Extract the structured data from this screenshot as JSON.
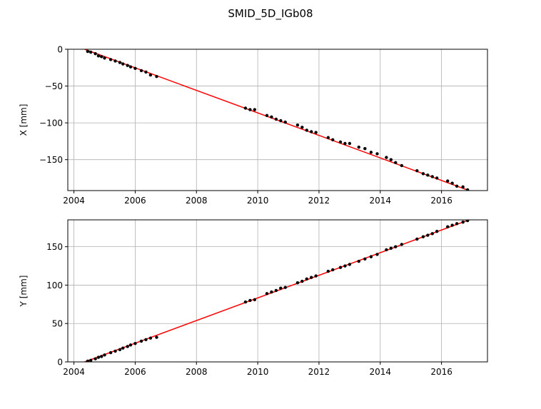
{
  "figure": {
    "title": "SMID_5D_IGb08"
  },
  "colors": {
    "fit_line": "#ff0000",
    "points": "#000000",
    "grid": "#b0b0b0",
    "axes": "#000000"
  },
  "chart_data": [
    {
      "type": "scatter",
      "title": "",
      "xlabel": "",
      "ylabel": "X [mm]",
      "xlim": [
        2003.8,
        2017.5
      ],
      "ylim": [
        -192,
        0
      ],
      "grid": true,
      "xticks": [
        2004,
        2006,
        2008,
        2010,
        2012,
        2014,
        2016
      ],
      "xtick_labels": [
        "2004",
        "2006",
        "2008",
        "2010",
        "2012",
        "2014",
        "2016"
      ],
      "yticks": [
        0,
        -50,
        -100,
        -150
      ],
      "ytick_labels": [
        "0",
        "−50",
        "−100",
        "−150"
      ],
      "trend": {
        "x": [
          2004.35,
          2016.9
        ],
        "y": [
          0,
          -192
        ]
      },
      "series": [
        {
          "x": [
            2004.45,
            2004.55,
            2004.7,
            2004.8,
            2004.9,
            2005.0,
            2005.2,
            2005.35,
            2005.5,
            2005.6,
            2005.75,
            2005.85,
            2006.0,
            2006.2,
            2006.35,
            2006.5,
            2006.7,
            2009.6,
            2009.75,
            2009.9,
            2010.3,
            2010.45,
            2010.6,
            2010.75,
            2010.9,
            2011.3,
            2011.45,
            2011.6,
            2011.75,
            2011.9,
            2012.3,
            2012.45,
            2012.7,
            2012.85,
            2013.0,
            2013.3,
            2013.5,
            2013.7,
            2013.9,
            2014.2,
            2014.35,
            2014.5,
            2014.7,
            2015.2,
            2015.4,
            2015.55,
            2015.7,
            2015.85,
            2016.2,
            2016.35,
            2016.5,
            2016.7,
            2016.85
          ],
          "y": [
            -3,
            -4,
            -6,
            -9,
            -10,
            -12,
            -14,
            -16,
            -18,
            -20,
            -22,
            -24,
            -26,
            -29,
            -31,
            -35,
            -37,
            -80,
            -82,
            -82,
            -90,
            -92,
            -95,
            -97,
            -99,
            -103,
            -106,
            -110,
            -112,
            -113,
            -120,
            -123,
            -126,
            -128,
            -128,
            -133,
            -135,
            -140,
            -142,
            -147,
            -150,
            -154,
            -158,
            -165,
            -169,
            -171,
            -173,
            -175,
            -179,
            -182,
            -186,
            -187,
            -191
          ]
        }
      ]
    },
    {
      "type": "scatter",
      "title": "",
      "xlabel": "",
      "ylabel": "Y [mm]",
      "xlim": [
        2003.8,
        2017.5
      ],
      "ylim": [
        0,
        185
      ],
      "grid": true,
      "xticks": [
        2004,
        2006,
        2008,
        2010,
        2012,
        2014,
        2016
      ],
      "xtick_labels": [
        "2004",
        "2006",
        "2008",
        "2010",
        "2012",
        "2014",
        "2016"
      ],
      "yticks": [
        0,
        50,
        100,
        150
      ],
      "ytick_labels": [
        "0",
        "50",
        "100",
        "150"
      ],
      "trend": {
        "x": [
          2004.35,
          2016.9
        ],
        "y": [
          0,
          185
        ]
      },
      "series": [
        {
          "x": [
            2004.45,
            2004.55,
            2004.7,
            2004.8,
            2004.9,
            2005.0,
            2005.2,
            2005.35,
            2005.5,
            2005.6,
            2005.75,
            2005.85,
            2006.0,
            2006.2,
            2006.35,
            2006.5,
            2006.7,
            2009.6,
            2009.75,
            2009.9,
            2010.3,
            2010.45,
            2010.6,
            2010.75,
            2010.9,
            2011.3,
            2011.45,
            2011.6,
            2011.75,
            2011.9,
            2012.3,
            2012.45,
            2012.7,
            2012.85,
            2013.0,
            2013.3,
            2013.5,
            2013.7,
            2013.9,
            2014.2,
            2014.35,
            2014.5,
            2014.7,
            2015.2,
            2015.4,
            2015.55,
            2015.7,
            2015.85,
            2016.2,
            2016.35,
            2016.5,
            2016.7,
            2016.85
          ],
          "y": [
            1,
            2,
            4,
            6,
            7,
            9,
            12,
            14,
            16,
            18,
            20,
            22,
            24,
            27,
            29,
            31,
            32,
            78,
            80,
            81,
            89,
            91,
            93,
            96,
            97,
            103,
            105,
            108,
            110,
            112,
            118,
            120,
            123,
            125,
            127,
            131,
            134,
            137,
            140,
            146,
            148,
            150,
            153,
            160,
            163,
            165,
            167,
            170,
            176,
            178,
            180,
            182,
            184
          ]
        }
      ]
    }
  ]
}
